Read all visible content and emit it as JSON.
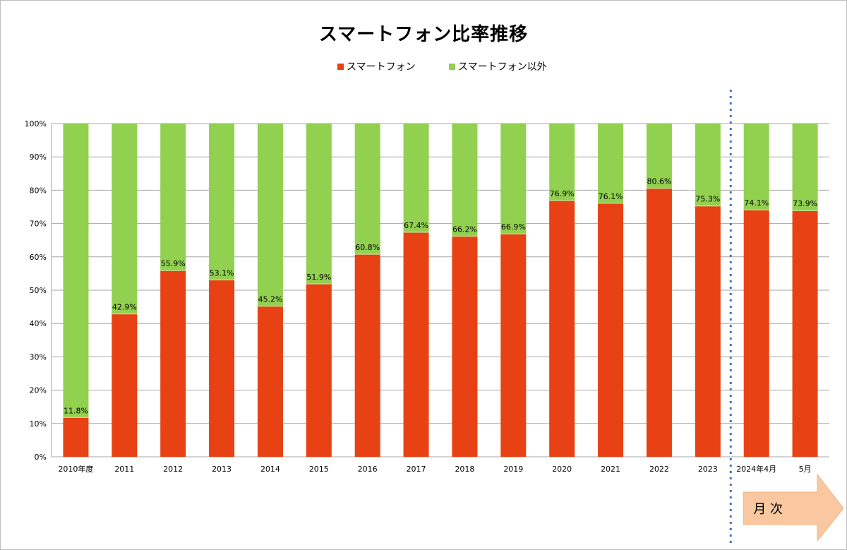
{
  "chart_data": {
    "type": "bar",
    "stacked": true,
    "percent_scale": true,
    "title": "スマートフォン比率推移",
    "categories": [
      "2010年度",
      "2011",
      "2012",
      "2013",
      "2014",
      "2015",
      "2016",
      "2017",
      "2018",
      "2019",
      "2020",
      "2021",
      "2022",
      "2023",
      "2024年4月",
      "5月"
    ],
    "series": [
      {
        "name": "スマートフォン",
        "color": "#e84113",
        "values": [
          11.8,
          42.9,
          55.9,
          53.1,
          45.2,
          51.9,
          60.8,
          67.4,
          66.2,
          66.9,
          76.9,
          76.1,
          80.6,
          75.3,
          74.1,
          73.9
        ]
      },
      {
        "name": "スマートフォン以外",
        "color": "#92d050",
        "values": [
          88.2,
          57.1,
          44.1,
          46.9,
          54.8,
          48.1,
          39.2,
          32.6,
          33.8,
          33.1,
          23.1,
          23.9,
          19.4,
          24.7,
          25.9,
          26.1
        ]
      }
    ],
    "data_labels": [
      "11.8%",
      "42.9%",
      "55.9%",
      "53.1%",
      "45.2%",
      "51.9%",
      "60.8%",
      "67.4%",
      "66.2%",
      "66.9%",
      "76.9%",
      "76.1%",
      "80.6%",
      "75.3%",
      "74.1%",
      "73.9%"
    ],
    "ylim": [
      0,
      100
    ],
    "yticks": [
      "0%",
      "10%",
      "20%",
      "30%",
      "40%",
      "50%",
      "60%",
      "70%",
      "80%",
      "90%",
      "100%"
    ],
    "grid": true,
    "legend_position": "top",
    "annotation": {
      "text": "月 次",
      "separator_color": "#4472c4",
      "arrow_color": "#f9c8a0"
    }
  }
}
